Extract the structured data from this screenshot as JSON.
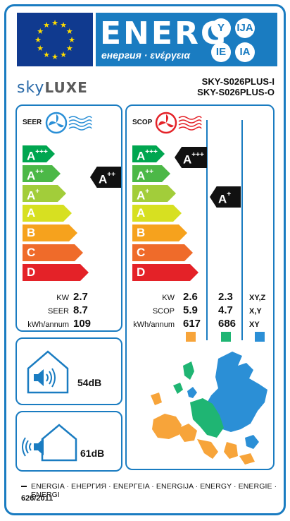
{
  "header": {
    "energy_word": "ENERG",
    "energy_sub": "енергия · ενέργεια",
    "lang_badges": [
      "Y",
      "IJA",
      "IE",
      "IA"
    ],
    "colors": {
      "eu_blue": "#103a8f",
      "eu_star": "#ffdd00",
      "label_blue": "#1a7cc1"
    }
  },
  "brand": {
    "name_part1": "sky",
    "name_part2": "LUXE",
    "model_indoor": "SKY-S026PLUS-I",
    "model_outdoor": "SKY-S026PLUS-O"
  },
  "seer": {
    "title": "SEER",
    "icon": "fan-blue-icon",
    "scale": [
      {
        "cls": "A",
        "sup": "+++",
        "color": "#00a650"
      },
      {
        "cls": "A",
        "sup": "++",
        "color": "#4cb847"
      },
      {
        "cls": "A",
        "sup": "+",
        "color": "#a2cd3a"
      },
      {
        "cls": "A",
        "sup": "",
        "color": "#d7e021"
      },
      {
        "cls": "B",
        "sup": "",
        "color": "#f6a21d"
      },
      {
        "cls": "C",
        "sup": "",
        "color": "#ef6b2a"
      },
      {
        "cls": "D",
        "sup": "",
        "color": "#e42228"
      }
    ],
    "rating": {
      "cls": "A",
      "sup": "++"
    },
    "rows": [
      {
        "label": "KW",
        "value": "2.7"
      },
      {
        "label": "SEER",
        "value": "8.7"
      },
      {
        "label": "kWh/annum",
        "value": "109"
      }
    ]
  },
  "scop": {
    "title": "SCOP",
    "icon": "fan-red-icon",
    "ratings": [
      {
        "cls": "A",
        "sup": "+++"
      },
      {
        "cls": "A",
        "sup": "+"
      }
    ],
    "rows": [
      {
        "label": "KW",
        "v1": "2.6",
        "v2": "2.3",
        "zone": "XY,Z"
      },
      {
        "label": "SCOP",
        "v1": "5.9",
        "v2": "4.7",
        "zone": "X,Y"
      },
      {
        "label": "kWh/annum",
        "v1": "617",
        "v2": "686",
        "zone": "XY"
      }
    ],
    "zone_colors": [
      "#f7a43a",
      "#1fb573",
      "#2b8fd6"
    ]
  },
  "noise": {
    "indoor": {
      "icon": "indoor-speaker-house-icon",
      "value": "54dB"
    },
    "outdoor": {
      "icon": "outdoor-speaker-house-icon",
      "value": "61dB"
    }
  },
  "footer": {
    "languages": "ENERGIA · ЕНЕРГИЯ · ΕΝΕΡΓΕΙΑ · ENERGIJA · ENERGY · ENERGIE · ENERGI",
    "regulation": "626/2011"
  }
}
